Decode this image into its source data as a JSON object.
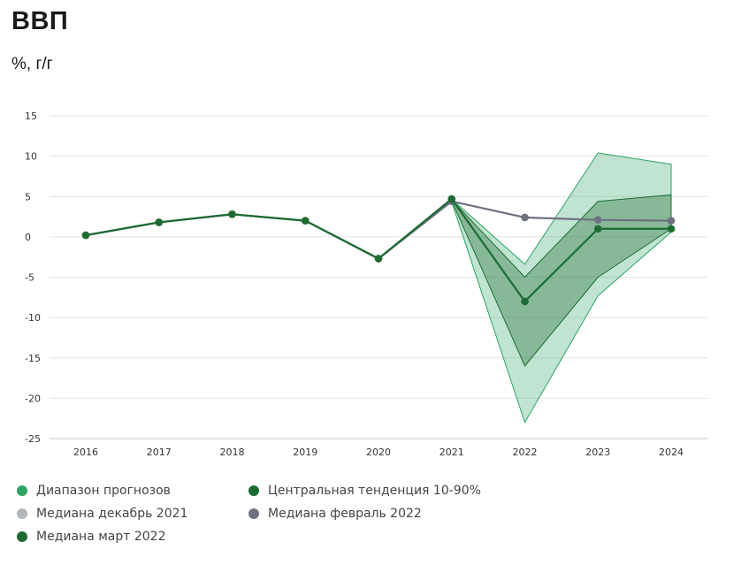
{
  "chart_data": {
    "type": "line",
    "title": "ВВП",
    "subtitle": "%, г/г",
    "categories": [
      "2016",
      "2017",
      "2018",
      "2019",
      "2020",
      "2021",
      "2022",
      "2023",
      "2024"
    ],
    "ylim": [
      -25,
      15
    ],
    "yticks": [
      15,
      10,
      5,
      0,
      -5,
      -10,
      -15,
      -20,
      -25
    ],
    "grid": true,
    "legend_position": "bottom",
    "ranges": [
      {
        "name": "Диапазон прогнозов",
        "color": "#2ea466",
        "lower": [
          null,
          null,
          null,
          null,
          null,
          4.3,
          -23.0,
          -7.3,
          0.6
        ],
        "upper": [
          null,
          null,
          null,
          null,
          null,
          4.7,
          -3.4,
          10.4,
          9.0
        ]
      },
      {
        "name": "Центральная тенденция 10-90%",
        "color": "#1d6b32",
        "lower": [
          null,
          null,
          null,
          null,
          null,
          4.5,
          -16.0,
          -5.0,
          1.0
        ],
        "upper": [
          null,
          null,
          null,
          null,
          null,
          4.6,
          -5.0,
          4.4,
          5.2
        ]
      }
    ],
    "series": [
      {
        "name": "Медиана декабрь 2021",
        "color": "#b3b6b9",
        "values": [
          0.2,
          1.8,
          2.8,
          2.0,
          -2.7,
          4.5,
          null,
          null,
          null
        ]
      },
      {
        "name": "Медиана февраль 2022",
        "color": "#6e7181",
        "values": [
          0.2,
          1.8,
          2.8,
          2.0,
          -2.7,
          4.4,
          2.4,
          2.1,
          2.0
        ]
      },
      {
        "name": "Медиана март 2022",
        "color": "#1d6b32",
        "values": [
          0.2,
          1.8,
          2.8,
          2.0,
          -2.7,
          4.7,
          -8.0,
          1.0,
          1.0
        ]
      }
    ]
  },
  "legend": [
    {
      "label": "Диапазон прогнозов",
      "color": "#2ea466"
    },
    {
      "label": "Центральная тенденция 10-90%",
      "color": "#1d6b32"
    },
    {
      "label": "Медиана декабрь 2021",
      "color": "#b3b6b9"
    },
    {
      "label": "Медиана февраль 2022",
      "color": "#6e7181"
    },
    {
      "label": "Медиана март 2022",
      "color": "#1d6b32"
    }
  ]
}
